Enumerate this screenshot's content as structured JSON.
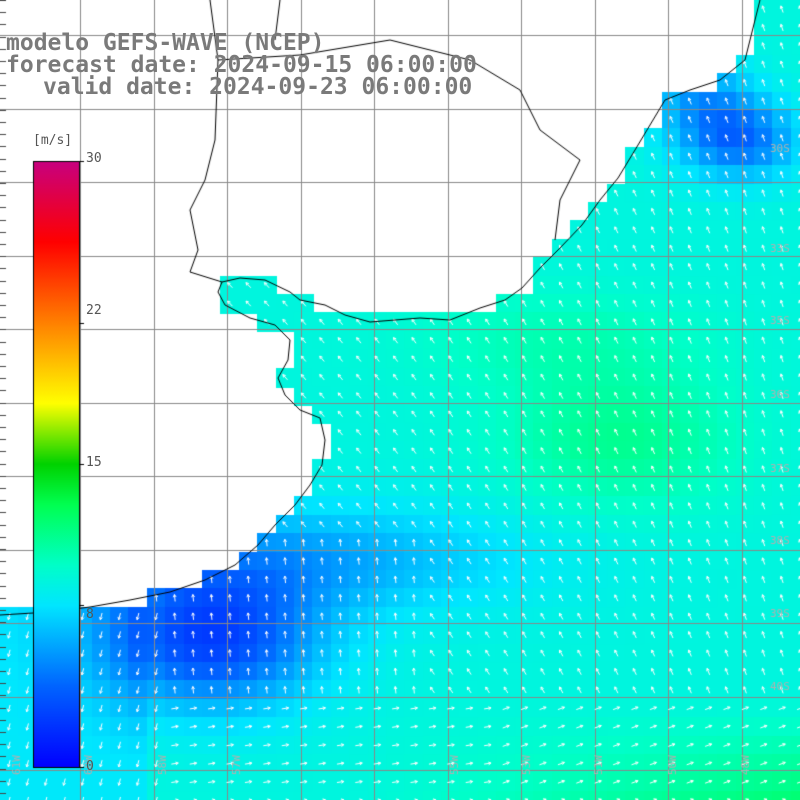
{
  "title": {
    "line1": "modelo GEFS-WAVE (NCEP)",
    "line2": "forecast date: 2024-09-15 06:00:00",
    "line3": "valid date: 2024-09-23 06:00:00"
  },
  "colorbar": {
    "unit": "[m/s]",
    "ticks": [
      "30",
      "22",
      "15",
      "8",
      "0"
    ],
    "range": [
      0,
      30
    ],
    "colors": [
      "#0000ff",
      "#00a0ff",
      "#00ffff",
      "#00ff00",
      "#ffff00",
      "#ff8000",
      "#ff0000",
      "#c00080"
    ]
  },
  "map": {
    "lat_labels": [
      "30S",
      "33S",
      "35S",
      "36S",
      "37S",
      "38S",
      "39S",
      "40S"
    ],
    "lon_labels": [
      "61W",
      "60W",
      "58W",
      "57W",
      "55W",
      "53W",
      "51W",
      "50W",
      "48W"
    ],
    "land_color": "#ffffff",
    "grid_color": "#888888"
  },
  "chart_data": {
    "type": "heatmap",
    "title": "modelo GEFS-WAVE (NCEP)",
    "subtitle": "forecast date: 2024-09-15 06:00:00 / valid date: 2024-09-23 06:00:00",
    "variable_unit": "[m/s]",
    "color_scale": [
      0,
      30
    ],
    "grid": true,
    "legend_placement": "left",
    "wind_speed_regions": [
      {
        "area": "Atlantic east of Uruguay/Brazil coast",
        "speed_ms": 9
      },
      {
        "area": "central open ocean patch",
        "speed_ms": 11
      },
      {
        "area": "Rio de la Plata outer / Buenos Aires coast",
        "speed_ms": 3
      },
      {
        "area": "northern Brazilian coast",
        "speed_ms": 4
      },
      {
        "area": "southern open ocean",
        "speed_ms": 10
      }
    ]
  }
}
